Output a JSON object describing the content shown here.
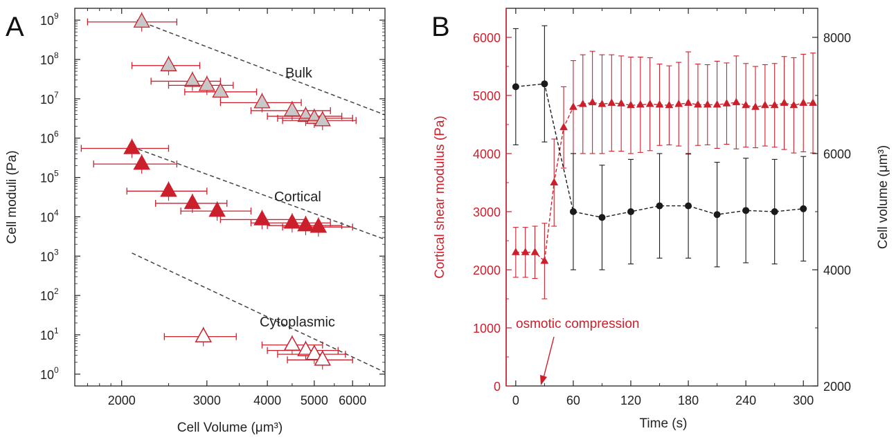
{
  "colors": {
    "red": "#cc1f2c",
    "black": "#1a1a1a",
    "grey_fill": "#c8c8c8",
    "dash": "#444444"
  },
  "chart_data": [
    {
      "panel_label": "A",
      "type": "scatter",
      "xlabel": "Cell Volume (μm³)",
      "ylabel": "Cell moduli (Pa)",
      "x_scale": "log",
      "y_scale": "log",
      "xlim": [
        1600,
        7000
      ],
      "ylim": [
        0.5,
        2000000000
      ],
      "x_ticks": [
        2000,
        3000,
        4000,
        5000,
        6000
      ],
      "x_tick_labels": [
        "2000",
        "3000",
        "4000",
        "5000",
        "6000"
      ],
      "y_ticks": [
        1,
        10,
        100,
        1000,
        10000,
        100000,
        1000000,
        10000000,
        100000000,
        1000000000
      ],
      "y_tick_labels": [
        {
          "base": "10",
          "exp": "0"
        },
        {
          "base": "10",
          "exp": "1"
        },
        {
          "base": "10",
          "exp": "2"
        },
        {
          "base": "10",
          "exp": "3"
        },
        {
          "base": "10",
          "exp": "4"
        },
        {
          "base": "10",
          "exp": "5"
        },
        {
          "base": "10",
          "exp": "6"
        },
        {
          "base": "10",
          "exp": "7"
        },
        {
          "base": "10",
          "exp": "8"
        },
        {
          "base": "10",
          "exp": "9"
        }
      ],
      "annotations": [
        "Bulk",
        "Cortical",
        "Cytoplasmic"
      ],
      "series": [
        {
          "label": "Bulk",
          "marker": "triangle",
          "fill": "grey",
          "points": [
            {
              "x": 2200,
              "y": 900000000,
              "xerr": [
                1700,
                2600
              ]
            },
            {
              "x": 2500,
              "y": 70000000,
              "xerr": [
                2100,
                2900
              ]
            },
            {
              "x": 2800,
              "y": 28000000,
              "xerr": [
                2300,
                3200
              ]
            },
            {
              "x": 3000,
              "y": 22000000,
              "xerr": [
                2500,
                3400
              ]
            },
            {
              "x": 3200,
              "y": 15000000,
              "xerr": [
                2700,
                3800
              ]
            },
            {
              "x": 3900,
              "y": 8000000,
              "xerr": [
                3200,
                4700
              ]
            },
            {
              "x": 4500,
              "y": 5000000,
              "xerr": [
                3700,
                5400
              ]
            },
            {
              "x": 4800,
              "y": 3600000,
              "xerr": [
                4000,
                5700
              ]
            },
            {
              "x": 5000,
              "y": 3200000,
              "xerr": [
                4200,
                6000
              ]
            },
            {
              "x": 5200,
              "y": 2800000,
              "xerr": [
                4300,
                6100
              ]
            }
          ],
          "fit": {
            "type": "power",
            "a": 900000000.0,
            "x0": 2200,
            "b": -4.7,
            "x_range": [
              2150,
              7000
            ]
          }
        },
        {
          "label": "Cortical",
          "marker": "triangle",
          "fill": "red",
          "points": [
            {
              "x": 2100,
              "y": 550000,
              "xerr": [
                1650,
                2500
              ]
            },
            {
              "x": 2200,
              "y": 220000,
              "xerr": [
                1750,
                2600
              ]
            },
            {
              "x": 2500,
              "y": 45000,
              "xerr": [
                2050,
                3000
              ]
            },
            {
              "x": 2800,
              "y": 22000,
              "xerr": [
                2350,
                3300
              ]
            },
            {
              "x": 3150,
              "y": 14000,
              "xerr": [
                2650,
                3700
              ]
            },
            {
              "x": 3900,
              "y": 8500,
              "xerr": [
                3200,
                4800
              ]
            },
            {
              "x": 4500,
              "y": 7000,
              "xerr": [
                3700,
                5400
              ]
            },
            {
              "x": 4800,
              "y": 6000,
              "xerr": [
                4000,
                5700
              ]
            },
            {
              "x": 5100,
              "y": 5500,
              "xerr": [
                4300,
                6000
              ]
            }
          ],
          "fit": {
            "type": "power",
            "a": 600000,
            "x0": 2100,
            "b": -4.5,
            "x_range": [
              2100,
              7000
            ]
          }
        },
        {
          "label": "Cytoplasmic",
          "marker": "triangle",
          "fill": "open",
          "points": [
            {
              "x": 2950,
              "y": 9,
              "xerr": [
                2450,
                3450
              ]
            },
            {
              "x": 4500,
              "y": 5.5,
              "xerr": [
                3900,
                5200
              ]
            },
            {
              "x": 4800,
              "y": 4,
              "xerr": [
                4000,
                5600
              ]
            },
            {
              "x": 5000,
              "y": 3.2,
              "xerr": [
                4200,
                5800
              ]
            },
            {
              "x": 5200,
              "y": 2.3,
              "xerr": [
                4400,
                6000
              ]
            }
          ],
          "fit": {
            "type": "power",
            "a": 1200,
            "x0": 2100,
            "b": -5.8,
            "x_range": [
              2100,
              7000
            ]
          }
        }
      ]
    },
    {
      "panel_label": "B",
      "type": "line",
      "xlabel": "Time (s)",
      "ylabel_left": "Cortical shear modulus (Pa)",
      "ylabel_right": "Cell volume (μm³)",
      "xlim": [
        -10,
        315
      ],
      "ylim_left": [
        0,
        6500
      ],
      "ylim_right": [
        2000,
        8500
      ],
      "x_ticks": [
        0,
        60,
        120,
        180,
        240,
        300
      ],
      "y_ticks_left": [
        0,
        1000,
        2000,
        3000,
        4000,
        5000,
        6000
      ],
      "y_ticks_right": [
        2000,
        4000,
        6000,
        8000
      ],
      "annotation": {
        "text": "osmotic compression",
        "x": 30
      },
      "series": [
        {
          "name": "Cortical shear modulus",
          "axis": "left",
          "color": "red",
          "marker": "triangle",
          "x": [
            0,
            10,
            20,
            30,
            40,
            50,
            60,
            70,
            80,
            90,
            100,
            110,
            120,
            130,
            140,
            150,
            160,
            170,
            180,
            190,
            200,
            210,
            220,
            230,
            240,
            250,
            260,
            270,
            280,
            290,
            300,
            310
          ],
          "y": [
            2300,
            2300,
            2300,
            2150,
            3500,
            4450,
            4800,
            4850,
            4880,
            4850,
            4870,
            4860,
            4830,
            4840,
            4850,
            4840,
            4830,
            4850,
            4870,
            4840,
            4840,
            4840,
            4860,
            4880,
            4830,
            4800,
            4830,
            4830,
            4870,
            4830,
            4870,
            4870
          ],
          "err": [
            430,
            430,
            450,
            650,
            750,
            700,
            800,
            850,
            880,
            850,
            830,
            820,
            830,
            820,
            800,
            700,
            680,
            720,
            880,
            700,
            690,
            750,
            700,
            800,
            720,
            700,
            700,
            720,
            800,
            820,
            840,
            860
          ]
        },
        {
          "name": "Cell volume",
          "axis": "right",
          "color": "black",
          "marker": "circle",
          "x": [
            0,
            30,
            60,
            90,
            120,
            150,
            180,
            210,
            240,
            270,
            300
          ],
          "y": [
            7150,
            7200,
            5000,
            4900,
            5000,
            5100,
            5100,
            4950,
            5020,
            5000,
            5050
          ],
          "err": [
            1000,
            1000,
            1000,
            900,
            900,
            900,
            900,
            900,
            900,
            900,
            900
          ]
        }
      ]
    }
  ]
}
